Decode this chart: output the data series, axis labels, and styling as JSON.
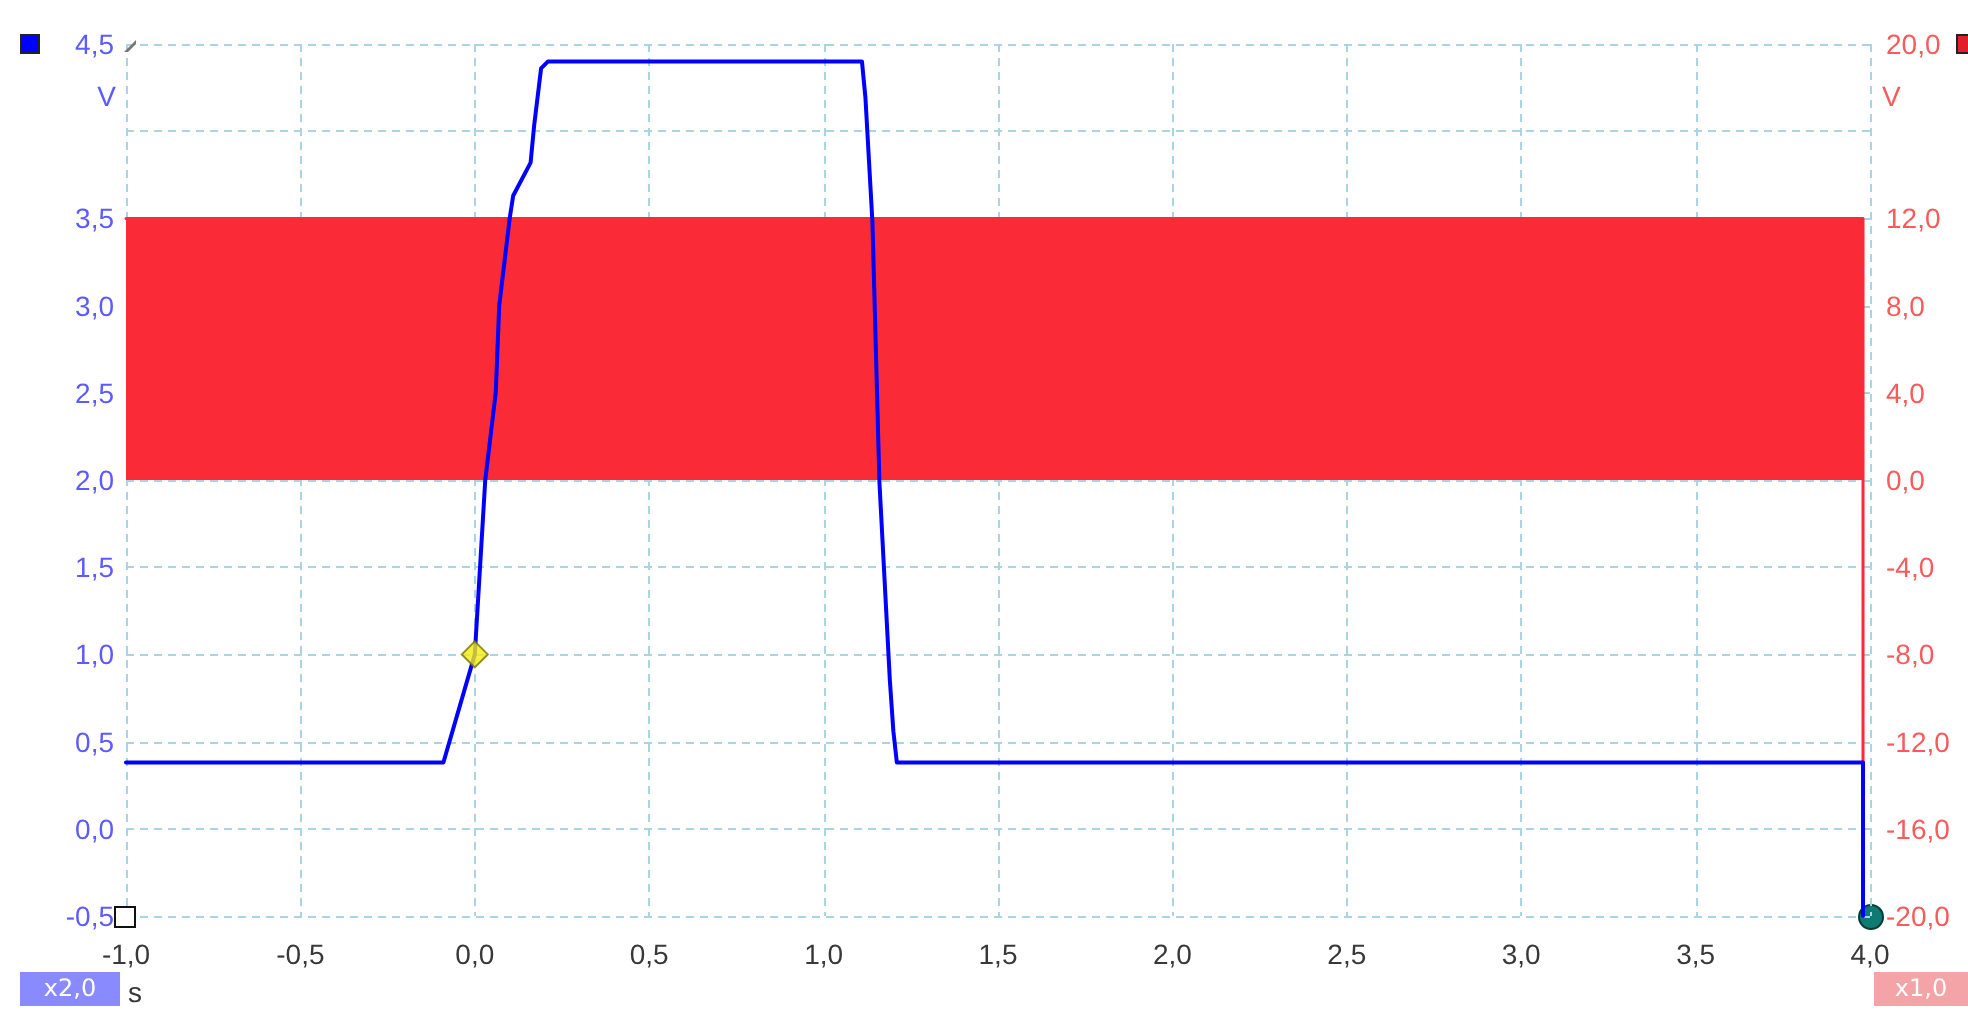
{
  "chart_data": {
    "type": "line",
    "xlabel": "s",
    "ylabel": "V",
    "y2label": "V",
    "annotations": [
      "x2,0",
      "x1,0"
    ],
    "xlim": [
      -1.0,
      4.0
    ],
    "xticks": [
      {
        "value": -1.0,
        "label": "-1,0"
      },
      {
        "value": -0.5,
        "label": "-0,5"
      },
      {
        "value": 0,
        "label": "0,0"
      },
      {
        "value": 0.5,
        "label": "0,5"
      },
      {
        "value": 1.0,
        "label": "1,0"
      },
      {
        "value": 1.5,
        "label": "1,5"
      },
      {
        "value": 2.0,
        "label": "2,0"
      },
      {
        "value": 2.5,
        "label": "2,5"
      },
      {
        "value": 3.0,
        "label": "3,0"
      },
      {
        "value": 3.5,
        "label": "3,5"
      },
      {
        "value": 4.0,
        "label": "4,0"
      }
    ],
    "ylim": [
      -0.5,
      4.5
    ],
    "yticks": [
      {
        "value": -0.5,
        "label": "-0,5"
      },
      {
        "value": 0,
        "label": "0,0"
      },
      {
        "value": 0.5,
        "label": "0,5"
      },
      {
        "value": 1.0,
        "label": "1,0"
      },
      {
        "value": 1.5,
        "label": "1,5"
      },
      {
        "value": 2.0,
        "label": "2,0"
      },
      {
        "value": 2.5,
        "label": "2,5"
      },
      {
        "value": 3.0,
        "label": "3,0"
      },
      {
        "value": 3.5,
        "label": "3,5"
      },
      {
        "value": 4.0,
        "label": null
      },
      {
        "value": 4.5,
        "label": "4,5"
      }
    ],
    "y2lim": [
      -20,
      20
    ],
    "y2ticks": [
      {
        "value": -20,
        "label": "-20,0"
      },
      {
        "value": -16,
        "label": "-16,0"
      },
      {
        "value": -12,
        "label": "-12,0"
      },
      {
        "value": -8,
        "label": "-8,0"
      },
      {
        "value": -4,
        "label": "-4,0"
      },
      {
        "value": 0,
        "label": "0,0"
      },
      {
        "value": 4,
        "label": "4,0"
      },
      {
        "value": 8,
        "label": "8,0"
      },
      {
        "value": 12,
        "label": "12,0"
      },
      {
        "value": 16,
        "label": null
      },
      {
        "value": 20,
        "label": "20,0"
      }
    ],
    "grid": true,
    "marker": "none",
    "line_style": "solid",
    "series": [
      {
        "type": "area",
        "axis": "y2",
        "color": "#fa2a36",
        "x": [
          -1.0,
          3.98,
          3.98
        ],
        "values": [
          12,
          12,
          -20
        ]
      },
      {
        "color": "#0000ff",
        "x": [
          -1.0,
          -0.09,
          0.0,
          0.03,
          0.06,
          0.07,
          0.1,
          0.11,
          0.16,
          0.17,
          0.19,
          0.21,
          1.11,
          1.12,
          1.14,
          1.16,
          1.19,
          1.2,
          1.21,
          3.98,
          3.98
        ],
        "values": [
          0.38,
          0.38,
          1.0,
          2.0,
          2.5,
          3.0,
          3.5,
          3.63,
          3.82,
          4.03,
          4.36,
          4.4,
          4.4,
          4.19,
          3.48,
          1.99,
          0.85,
          0.56,
          0.38,
          0.38,
          -0.5
        ]
      },
      {
        "type": "scatter",
        "marker": "diamond",
        "color": "#f4ec14",
        "x": [
          0.0
        ],
        "values": [
          1.0
        ]
      }
    ]
  }
}
